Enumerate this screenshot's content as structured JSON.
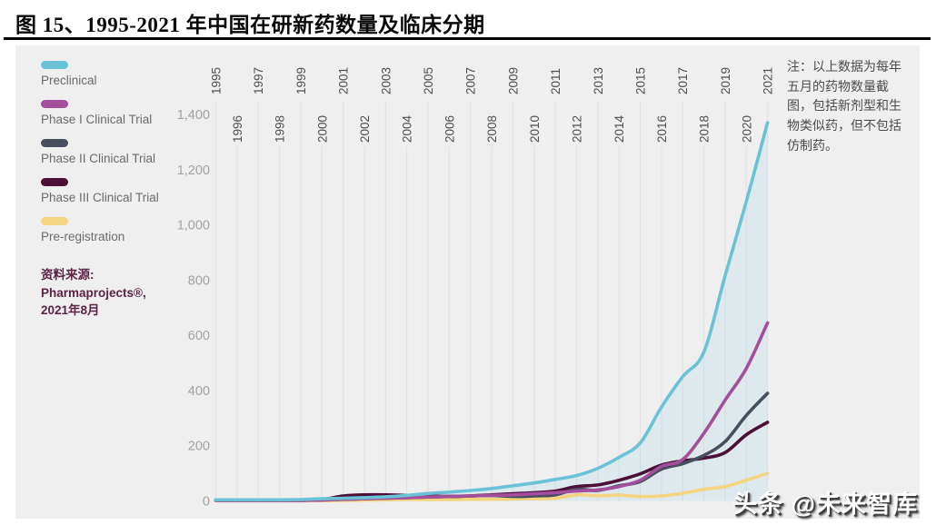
{
  "title": "图 15、1995-2021 年中国在研新药数量及临床分期",
  "legend": {
    "items": [
      {
        "label": "Preclinical",
        "color": "#69c3d5"
      },
      {
        "label": "Phase I Clinical Trial",
        "color": "#a44f9d"
      },
      {
        "label": "Phase II Clinical Trial",
        "color": "#474e5d"
      },
      {
        "label": "Phase III Clinical Trial",
        "color": "#4c0f36"
      },
      {
        "label": "Pre-registration",
        "color": "#f2d57e"
      }
    ]
  },
  "source_text": "资料来源:\nPharmaprojects®,\n2021年8月",
  "note_text": "注：以上数据为每年五月的药物数量截图，包括新剂型和生物类似药，但不包括仿制药。",
  "watermark_text": "头条 @未来智库",
  "colors": {
    "panel_bg": "#efeff0",
    "grid_line": "#e3e3e5",
    "year_label": "#4f4f4f",
    "ytick_label": "#a2a2a2",
    "source_text": "#5c2345",
    "note_text": "#4c4c4c"
  },
  "chart_data": {
    "type": "line",
    "title": "1995-2021 年中国在研新药数量及临床分期",
    "x": [
      1995,
      1996,
      1997,
      1998,
      1999,
      2000,
      2001,
      2002,
      2003,
      2004,
      2005,
      2006,
      2007,
      2008,
      2009,
      2010,
      2011,
      2012,
      2013,
      2014,
      2015,
      2016,
      2017,
      2018,
      2019,
      2020,
      2021
    ],
    "series": [
      {
        "name": "Preclinical",
        "color": "#69c3d5",
        "area": true,
        "values": [
          4,
          4,
          4,
          4,
          5,
          8,
          10,
          12,
          15,
          20,
          27,
          32,
          38,
          45,
          55,
          65,
          78,
          92,
          118,
          158,
          210,
          340,
          450,
          540,
          815,
          1085,
          1370
        ]
      },
      {
        "name": "Phase I Clinical Trial",
        "color": "#a44f9d",
        "area": false,
        "values": [
          2,
          2,
          2,
          2,
          2,
          3,
          6,
          8,
          10,
          12,
          14,
          16,
          18,
          20,
          22,
          26,
          30,
          36,
          40,
          52,
          75,
          125,
          150,
          245,
          365,
          480,
          645
        ]
      },
      {
        "name": "Phase II Clinical Trial",
        "color": "#474e5d",
        "area": false,
        "values": [
          3,
          3,
          3,
          3,
          3,
          4,
          6,
          8,
          10,
          12,
          14,
          16,
          18,
          20,
          16,
          18,
          22,
          42,
          38,
          55,
          70,
          115,
          135,
          165,
          215,
          310,
          390
        ]
      },
      {
        "name": "Phase III Clinical Trial",
        "color": "#4c0f36",
        "area": false,
        "values": [
          2,
          2,
          2,
          2,
          2,
          5,
          18,
          22,
          22,
          20,
          18,
          16,
          18,
          22,
          26,
          30,
          36,
          52,
          58,
          75,
          98,
          130,
          145,
          155,
          175,
          240,
          285
        ]
      },
      {
        "name": "Pre-registration",
        "color": "#f2d57e",
        "area": false,
        "values": [
          1,
          1,
          1,
          1,
          1,
          1,
          2,
          3,
          4,
          5,
          5,
          5,
          6,
          6,
          7,
          8,
          10,
          22,
          19,
          21,
          16,
          18,
          28,
          42,
          52,
          75,
          100
        ]
      }
    ],
    "ylim": [
      0,
      1400
    ],
    "yticks": [
      {
        "value": 0,
        "label": "0"
      },
      {
        "value": 200,
        "label": "200"
      },
      {
        "value": 400,
        "label": "400"
      },
      {
        "value": 600,
        "label": "600"
      },
      {
        "value": 800,
        "label": "800"
      },
      {
        "value": 1000,
        "label": "1,000"
      },
      {
        "value": 1200,
        "label": "1,200"
      },
      {
        "value": 1400,
        "label": "1,400"
      }
    ],
    "grid": "vertical-year-lines",
    "x_axis_position": "top",
    "x_label_rotation": -90,
    "legend_position": "left"
  }
}
